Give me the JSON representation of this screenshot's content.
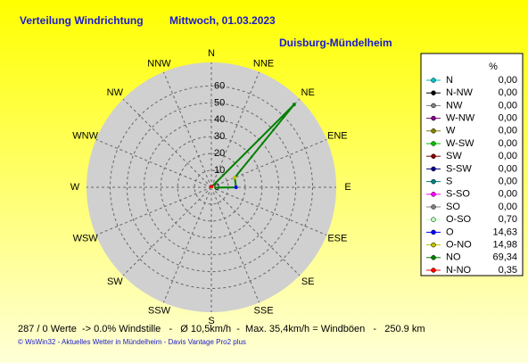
{
  "chart_data": {
    "type": "windrose",
    "title": "Verteilung Windrichtung",
    "date": "Mittwoch, 01.03.2023",
    "subtitle": "Duisburg-Mündelheim",
    "directions": [
      "N",
      "NNE",
      "NE",
      "ENE",
      "E",
      "ESE",
      "SE",
      "SSE",
      "S",
      "SSW",
      "SW",
      "WSW",
      "W",
      "WNW",
      "NW",
      "NNW"
    ],
    "rlim": [
      0,
      74
    ],
    "rticks": [
      0,
      10,
      20,
      30,
      40,
      50,
      60
    ],
    "grid": true,
    "line_color": "#008000",
    "legend_unit": "%",
    "series": {
      "names": [
        "N",
        "N-NW",
        "NW",
        "W-NW",
        "W",
        "W-SW",
        "SW",
        "S-SW",
        "S",
        "S-SO",
        "SO",
        "O-SO",
        "O",
        "O-NO",
        "NO",
        "N-NO"
      ],
      "values": [
        0,
        0,
        0,
        0,
        0,
        0,
        0,
        0,
        0,
        0,
        0,
        0.7,
        14.63,
        14.98,
        69.34,
        0.35
      ],
      "value_labels": [
        "0,00",
        "0,00",
        "0,00",
        "0,00",
        "0,00",
        "0,00",
        "0,00",
        "0,00",
        "0,00",
        "0,00",
        "0,00",
        "0,70",
        "14,63",
        "14,98",
        "69,34",
        "0,35"
      ],
      "colors": [
        "#00c0c0",
        "#000000",
        "#808080",
        "#800080",
        "#808000",
        "#00c000",
        "#800000",
        "#000080",
        "#008080",
        "#ff00ff",
        "#808080",
        "#c0ffc0",
        "#0000ff",
        "#c0c000",
        "#008000",
        "#ff0000"
      ]
    },
    "footer": "287 / 0 Werte  -> 0.0% Windstille   -   Ø 10,5km/h  -  Max. 35,4km/h = Windböen   -   250.9 km",
    "credit": "© WsWin32  -  Aktuelles Wetter in Mündelheim  -  Davis Vantage Pro2 plus"
  }
}
